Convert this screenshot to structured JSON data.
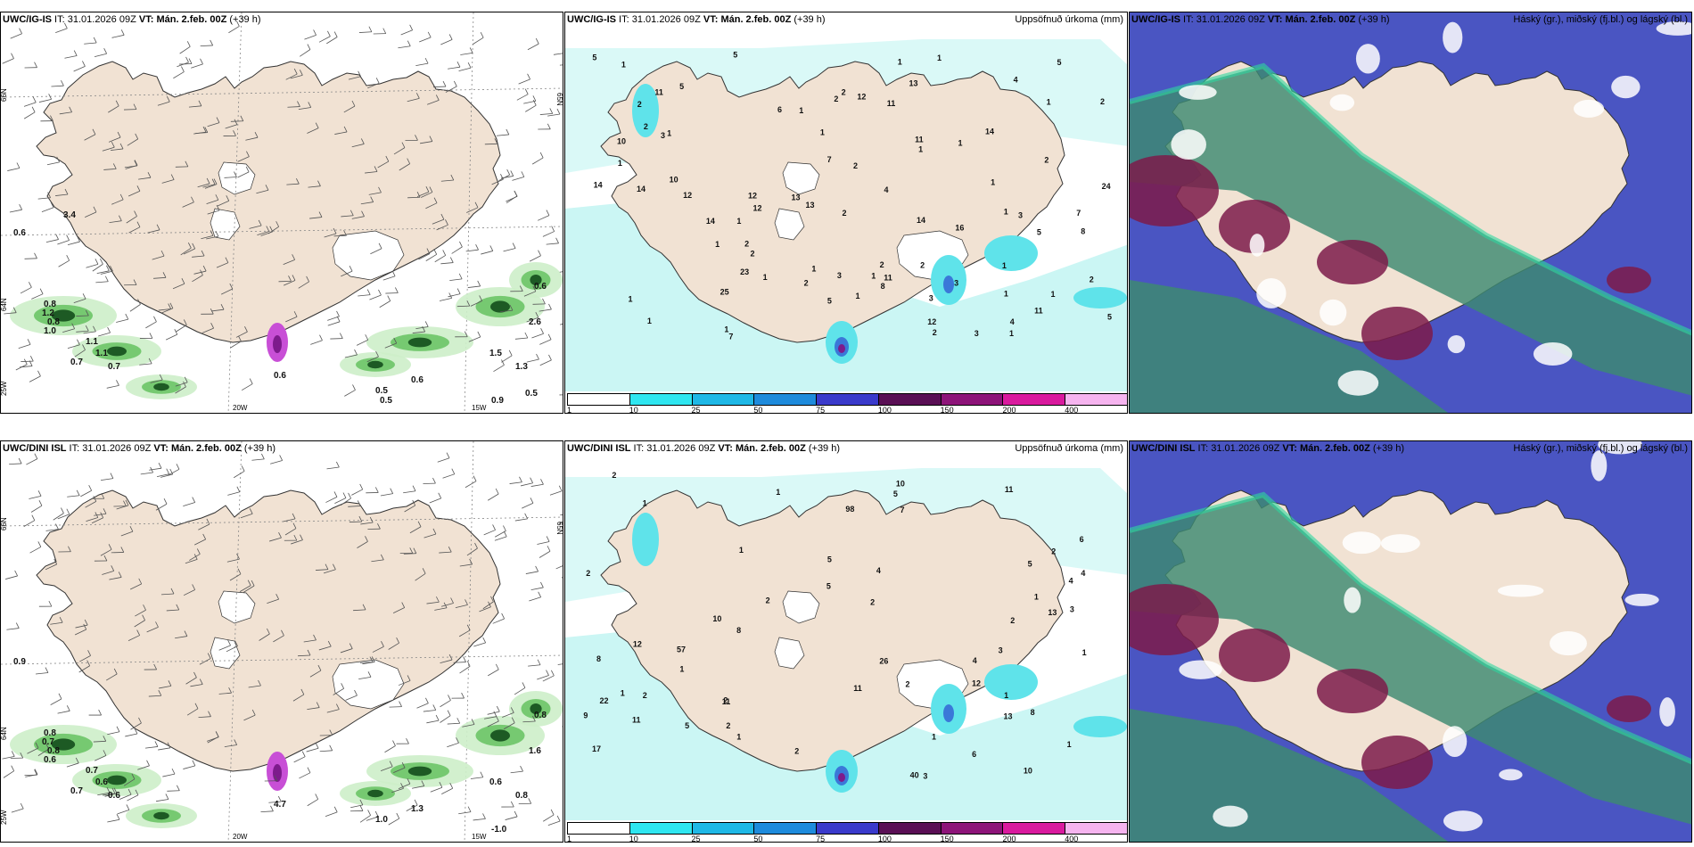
{
  "colors": {
    "land": "#f1e2d3",
    "ocean": "#ffffff",
    "precip_light": "#cbf6f4",
    "precip_mid": "#5fe3ea",
    "precip_heavy": "#3a78d8",
    "cloud_high": "#3d8a72",
    "cloud_mid": "#7c1b4a",
    "cloud_low": "#5358c4",
    "wind_precip": "#5fbf5a"
  },
  "panels": [
    {
      "id": "p1",
      "model": "UWC/IG-IS",
      "it_label": "IT:",
      "it": "31.01.2026 09Z",
      "vt_label": "VT:",
      "vt": "Mán. 2.feb. 00Z",
      "lead": "(+39 h)",
      "right": "",
      "lat_labels": [
        "66N",
        "64N",
        "25W",
        "20W",
        "15W",
        "65N"
      ],
      "values": [
        "0.6",
        "0.8",
        "1.2",
        "0.8",
        "1.0",
        "1.1",
        "0.7",
        "1.1",
        "0.7",
        "0.6",
        "0.5",
        "0.6",
        "0.6",
        "2.6",
        "1.3",
        "1.5",
        "0.9",
        "0.5",
        "3.4",
        "0.5"
      ]
    },
    {
      "id": "p2",
      "model": "UWC/IG-IS",
      "it_label": "IT:",
      "it": "31.01.2026 09Z",
      "vt_label": "VT:",
      "vt": "Mán. 2.feb. 00Z",
      "lead": "(+39 h)",
      "right": "Uppsöfnuð úrkoma (mm)",
      "values": [
        "1",
        "2",
        "2",
        "1",
        "3",
        "1",
        "3",
        "5",
        "5",
        "3",
        "10",
        "12",
        "1",
        "1",
        "1",
        "1",
        "2",
        "1",
        "1",
        "5",
        "2",
        "2",
        "2",
        "1",
        "2",
        "2",
        "2",
        "8",
        "12",
        "8",
        "11",
        "24",
        "11",
        "14",
        "12",
        "5",
        "7",
        "7",
        "10",
        "13",
        "11",
        "14",
        "14",
        "13",
        "5",
        "5",
        "3",
        "3",
        "11",
        "1",
        "2",
        "4",
        "4",
        "3",
        "1",
        "7",
        "4",
        "1",
        "2",
        "1",
        "1",
        "1",
        "2",
        "12",
        "2",
        "1",
        "6",
        "11",
        "14",
        "12",
        "13",
        "23",
        "16",
        "25",
        "14",
        "5",
        "2",
        "1",
        "1",
        "1",
        "1",
        "1",
        "1",
        "2",
        "1",
        "1"
      ]
    },
    {
      "id": "p3",
      "model": "UWC/IG-IS",
      "it_label": "IT:",
      "it": "31.01.2026 09Z",
      "vt_label": "VT:",
      "vt": "Mán. 2.feb. 00Z",
      "lead": "(+39 h)",
      "right": "Háský (gr.), miðský (fj.bl.) og lágský (bl.)"
    },
    {
      "id": "p4",
      "model": "UWC/DINI ISL",
      "it_label": "IT:",
      "it": "31.01.2026 09Z",
      "vt_label": "VT:",
      "vt": "Mán. 2.feb. 00Z",
      "lead": "(+39 h)",
      "right": "",
      "lat_labels": [
        "66N",
        "64N",
        "25W",
        "20W",
        "15W",
        "65N"
      ],
      "values": [
        "0.9",
        "0.8",
        "0.7",
        "0.8",
        "0.6",
        "0.7",
        "0.7",
        "0.6",
        "0.6",
        "4.7",
        "1.0",
        "1.3",
        "0.8",
        "1.6",
        "0.8",
        "0.6",
        "-1.0"
      ]
    },
    {
      "id": "p5",
      "model": "UWC/DINI ISL",
      "it_label": "IT:",
      "it": "31.01.2026 09Z",
      "vt_label": "VT:",
      "vt": "Mán. 2.feb. 00Z",
      "lead": "(+39 h)",
      "right": "Uppsöfnuð úrkoma (mm)",
      "values": [
        "2",
        "2",
        "2",
        "1",
        "2",
        "5",
        "5",
        "11",
        "11",
        "57",
        "40",
        "2",
        "1",
        "8",
        "4",
        "10",
        "3",
        "4",
        "2",
        "2",
        "8",
        "2",
        "1",
        "1",
        "1",
        "1",
        "1",
        "2",
        "1",
        "2",
        "1",
        "7",
        "5",
        "26",
        "98",
        "4",
        "5",
        "6",
        "8",
        "10",
        "11",
        "13",
        "12",
        "11",
        "12",
        "22",
        "13",
        "9",
        "6",
        "5",
        "3",
        "2",
        "17",
        "10",
        "3",
        "4",
        "1",
        "1"
      ]
    },
    {
      "id": "p6",
      "model": "UWC/DINI ISL",
      "it_label": "IT:",
      "it": "31.01.2026 09Z",
      "vt_label": "VT:",
      "vt": "Mán. 2.feb. 00Z",
      "lead": "(+39 h)",
      "right": "Háský (gr.), miðský (fj.bl.) og lágský (bl.)"
    }
  ],
  "colorbar": {
    "ticks": [
      "1",
      "10",
      "25",
      "50",
      "75",
      "100",
      "150",
      "200",
      "400"
    ],
    "colors": [
      "#ffffff",
      "#2fe6f0",
      "#1fb8e6",
      "#1e8bdc",
      "#3a3acb",
      "#5a0f55",
      "#8d1479",
      "#d91a9e",
      "#f6b4ef"
    ]
  }
}
